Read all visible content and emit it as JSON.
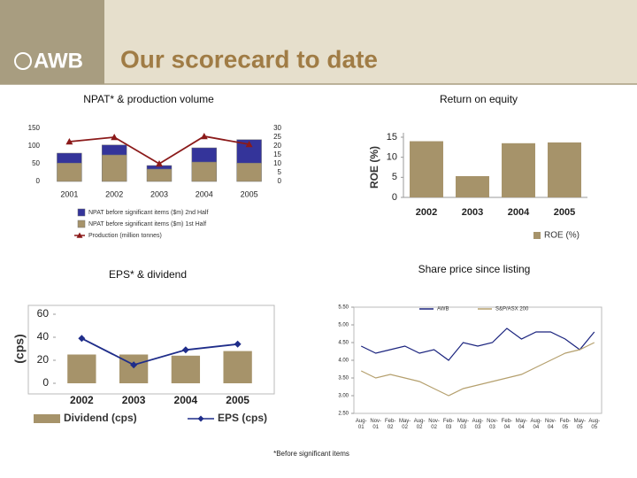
{
  "header": {
    "logo": "AWB",
    "title": "Our scorecard to date"
  },
  "footnote": "*Before significant items",
  "chart_data": [
    {
      "type": "combo",
      "title": "NPAT* & production volume",
      "stacked": true,
      "categories": [
        "2001",
        "2002",
        "2003",
        "2004",
        "2005"
      ],
      "series": [
        {
          "name": "NPAT before significant items ($m) 2nd Half",
          "kind": "bar",
          "color": "#34349a",
          "values": [
            28,
            28,
            10,
            40,
            66
          ]
        },
        {
          "name": "NPAT before significant items ($m) 1st Half",
          "kind": "bar",
          "color": "#a6936a",
          "values": [
            52,
            75,
            35,
            55,
            52
          ]
        },
        {
          "name": "Production (million tonnes)",
          "kind": "line",
          "marker": "triangle",
          "axis": "y2",
          "color": "#8b1a1a",
          "values": [
            22.5,
            25,
            10,
            25.5,
            21
          ]
        }
      ],
      "ylim": [
        0,
        150
      ],
      "yticks": [
        0,
        50,
        100,
        150
      ],
      "y2lim": [
        0,
        30
      ],
      "y2ticks": [
        0,
        5,
        10,
        15,
        20,
        25,
        30
      ]
    },
    {
      "type": "combo",
      "title": "Return on equity",
      "y_label": "ROE (%)",
      "categories": [
        "2002",
        "2003",
        "2004",
        "2005"
      ],
      "series": [
        {
          "name": "ROE (%)",
          "kind": "bar",
          "color": "#a6936a",
          "values": [
            14,
            5.3,
            13.5,
            13.7
          ]
        }
      ],
      "ylim": [
        0,
        15
      ],
      "yticks": [
        0,
        5,
        10,
        15
      ]
    },
    {
      "type": "combo",
      "title": "EPS* & dividend",
      "y_label": "(cps)",
      "categories": [
        "2002",
        "2003",
        "2004",
        "2005"
      ],
      "series": [
        {
          "name": "Dividend (cps)",
          "kind": "bar",
          "color": "#a6936a",
          "values": [
            25,
            25,
            24,
            28
          ]
        },
        {
          "name": "EPS (cps)",
          "kind": "line",
          "marker": "diamond",
          "color": "#1f2d8a",
          "values": [
            39,
            16,
            29,
            34
          ]
        }
      ],
      "ylim": [
        0,
        60
      ],
      "yticks": [
        0,
        20,
        40,
        60
      ]
    },
    {
      "type": "line",
      "title": "Share price since listing",
      "categories": [
        "Aug-01",
        "Nov-01",
        "Feb-02",
        "May-02",
        "Aug-02",
        "Nov-02",
        "Feb-03",
        "May-03",
        "Aug-03",
        "Nov-03",
        "Feb-04",
        "May-04",
        "Aug-04",
        "Nov-04",
        "Feb-05",
        "May-05",
        "Aug-05"
      ],
      "series": [
        {
          "name": "AWB",
          "color": "#1a237e",
          "values": [
            4.4,
            4.2,
            4.3,
            4.4,
            4.2,
            4.3,
            4.0,
            4.5,
            4.4,
            4.5,
            4.9,
            4.6,
            4.8,
            4.8,
            4.6,
            4.3,
            4.8
          ]
        },
        {
          "name": "S&P/ASX 200",
          "color": "#b5a06e",
          "values": [
            3.7,
            3.5,
            3.6,
            3.5,
            3.4,
            3.2,
            3.0,
            3.2,
            3.3,
            3.4,
            3.5,
            3.6,
            3.8,
            4.0,
            4.2,
            4.3,
            4.5
          ]
        }
      ],
      "ylim": [
        2.5,
        5.5
      ],
      "yticks": [
        {
          "value": 2.5,
          "label": "2.50"
        },
        {
          "value": 3,
          "label": "3.00"
        },
        {
          "value": 3.5,
          "label": "3.50"
        },
        {
          "value": 4,
          "label": "4.00"
        },
        {
          "value": 4.5,
          "label": "4.50"
        },
        {
          "value": 5,
          "label": "5.00"
        },
        {
          "value": 5.5,
          "label": "5.50"
        }
      ]
    }
  ]
}
